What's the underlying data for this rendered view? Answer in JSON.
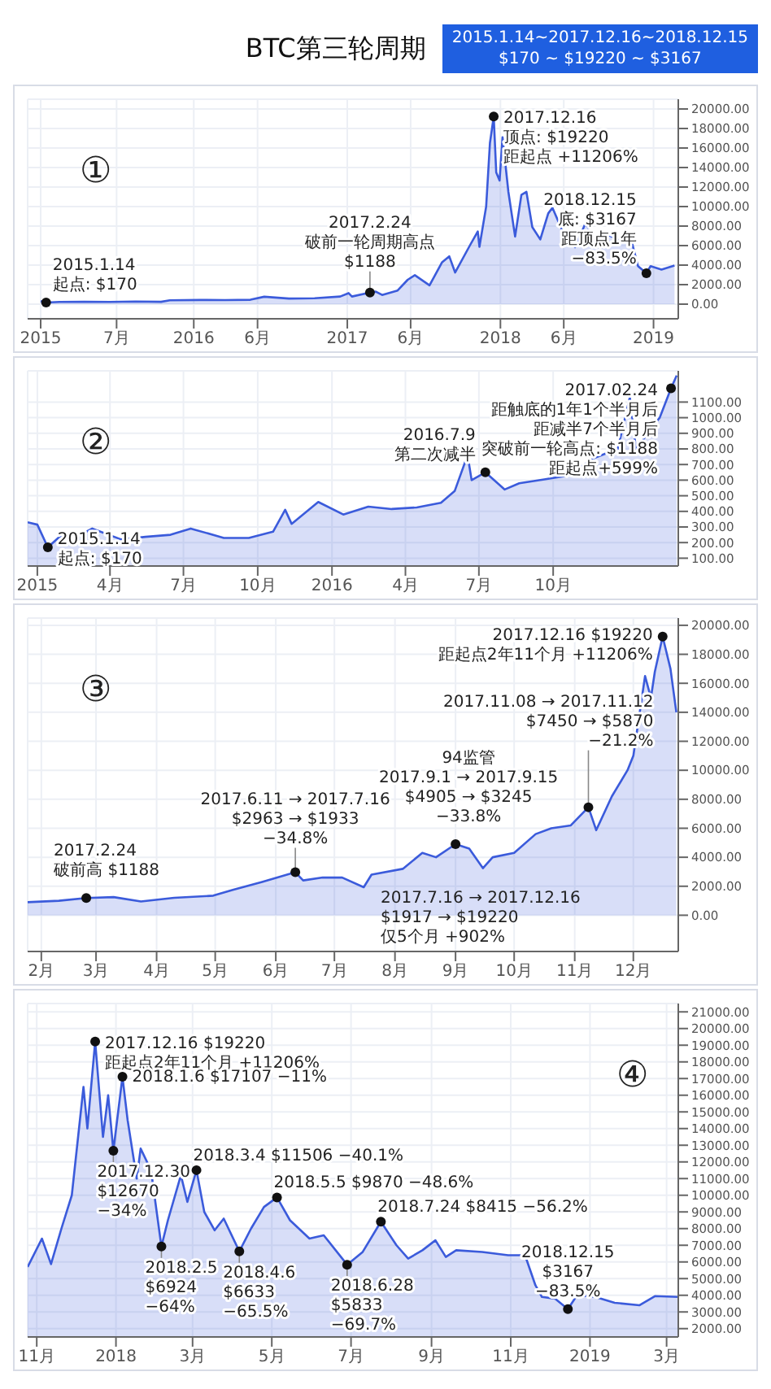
{
  "chart_data": [
    {
      "type": "area",
      "title": "BTC第三轮周期",
      "subtitle": "2015.1.14~2017.12.16~2018.12.15\n$170 ~ $19220 ~ $3167",
      "x": [
        "2015-01-01",
        "2015-01-14",
        "2015-02-15",
        "2015-04-15",
        "2015-06-15",
        "2015-08-15",
        "2015-10-15",
        "2015-11-05",
        "2016-01-15",
        "2016-03-15",
        "2016-05-15",
        "2016-06-17",
        "2016-08-15",
        "2016-10-15",
        "2016-12-15",
        "2017-01-04",
        "2017-01-12",
        "2017-02-24",
        "2017-03-10",
        "2017-03-25",
        "2017-05-01",
        "2017-05-25",
        "2017-06-11",
        "2017-07-16",
        "2017-08-15",
        "2017-09-01",
        "2017-09-15",
        "2017-10-20",
        "2017-11-08",
        "2017-11-12",
        "2017-11-28",
        "2017-12-07",
        "2017-12-16",
        "2017-12-22",
        "2017-12-30",
        "2018-01-06",
        "2018-01-20",
        "2018-02-05",
        "2018-02-20",
        "2018-03-04",
        "2018-03-18",
        "2018-04-06",
        "2018-04-25",
        "2018-05-05",
        "2018-05-30",
        "2018-06-28",
        "2018-07-24",
        "2018-08-14",
        "2018-09-04",
        "2018-10-15",
        "2018-11-10",
        "2018-11-25",
        "2018-12-15",
        "2018-12-25",
        "2019-01-20",
        "2019-02-20"
      ],
      "series": [
        {
          "color": "#3b5bdb",
          "values": [
            320,
            170,
            230,
            240,
            225,
            270,
            240,
            400,
            430,
            415,
            450,
            760,
            570,
            610,
            780,
            1130,
            780,
            1188,
            1280,
            940,
            1400,
            2500,
            2963,
            1933,
            4300,
            4905,
            3245,
            6000,
            7450,
            5870,
            10000,
            16500,
            19220,
            13500,
            12670,
            17107,
            11500,
            6924,
            11200,
            11506,
            7900,
            6633,
            9300,
            9870,
            7400,
            5833,
            8415,
            6200,
            7300,
            6500,
            6400,
            3900,
            3167,
            3900,
            3550,
            3950
          ]
        }
      ],
      "xlim": [
        "2014-12-01",
        "2019-03-01"
      ],
      "xticks": [
        {
          "value": "2015-01-01",
          "label": "2015"
        },
        {
          "value": "2015-07-01",
          "label": "7月"
        },
        {
          "value": "2016-01-01",
          "label": "2016"
        },
        {
          "value": "2016-06-01",
          "label": "6月"
        },
        {
          "value": "2017-01-01",
          "label": "2017"
        },
        {
          "value": "2017-06-01",
          "label": "6月"
        },
        {
          "value": "2018-01-01",
          "label": "2018"
        },
        {
          "value": "2018-06-01",
          "label": "6月"
        },
        {
          "value": "2019-01-01",
          "label": "2019"
        }
      ],
      "ylim": [
        -1500,
        21000
      ],
      "yticks": [
        {
          "value": 0,
          "label": "0.00"
        },
        {
          "value": 2000,
          "label": "2000.00"
        },
        {
          "value": 4000,
          "label": "4000.00"
        },
        {
          "value": 6000,
          "label": "6000.00"
        },
        {
          "value": 8000,
          "label": "8000.00"
        },
        {
          "value": 10000,
          "label": "10000.00"
        },
        {
          "value": 12000,
          "label": "12000.00"
        },
        {
          "value": 14000,
          "label": "14000.00"
        },
        {
          "value": 16000,
          "label": "16000.00"
        },
        {
          "value": 18000,
          "label": "18000.00"
        },
        {
          "value": 20000,
          "label": "20000.00"
        }
      ],
      "grid": true,
      "annotations": [
        "①",
        {
          "text": "2017.12.16\n顶点: $19220\n距起点 +11206%",
          "x": "2017-12-16",
          "y": 19220
        },
        {
          "text": "2018.12.15\n底: $3167\n距顶点1年\n−83.5%",
          "x": "2018-12-15",
          "y": 3167
        },
        {
          "text": "2015.1.14\n起点: $170",
          "x": "2015-01-14",
          "y": 170
        },
        {
          "text": "2017.2.24\n破前一轮周期高点\n$1188",
          "x": "2017-02-24",
          "y": 1188
        }
      ]
    },
    {
      "type": "area",
      "x": [
        "2014-12-20",
        "2015-01-01",
        "2015-01-14",
        "2015-01-28",
        "2015-02-20",
        "2015-03-10",
        "2015-04-15",
        "2015-05-15",
        "2015-06-15",
        "2015-07-10",
        "2015-08-20",
        "2015-09-20",
        "2015-10-20",
        "2015-11-04",
        "2015-11-12",
        "2015-12-15",
        "2016-01-15",
        "2016-02-15",
        "2016-03-15",
        "2016-04-15",
        "2016-05-15",
        "2016-06-01",
        "2016-06-17",
        "2016-06-22",
        "2016-07-09",
        "2016-08-02",
        "2016-08-20",
        "2016-09-20",
        "2016-10-20",
        "2016-11-20",
        "2016-12-20",
        "2017-01-04",
        "2017-01-12",
        "2017-01-25",
        "2017-02-10",
        "2017-02-24",
        "2017-03-03"
      ],
      "series": [
        {
          "color": "#3b5bdb",
          "values": [
            330,
            315,
            170,
            235,
            240,
            290,
            220,
            237,
            250,
            290,
            230,
            230,
            270,
            410,
            320,
            460,
            380,
            430,
            415,
            425,
            455,
            530,
            760,
            600,
            650,
            540,
            580,
            605,
            630,
            740,
            800,
            1130,
            780,
            900,
            1000,
            1188,
            1270
          ]
        }
      ],
      "xlim": [
        "2014-12-20",
        "2017-03-05"
      ],
      "xticks": [
        {
          "value": "2015-01-01",
          "label": "2015"
        },
        {
          "value": "2015-04-01",
          "label": "4月"
        },
        {
          "value": "2015-07-01",
          "label": "7月"
        },
        {
          "value": "2015-10-01",
          "label": "10月"
        },
        {
          "value": "2016-01-01",
          "label": "2016"
        },
        {
          "value": "2016-04-01",
          "label": "4月"
        },
        {
          "value": "2016-07-01",
          "label": "7月"
        },
        {
          "value": "2016-10-01",
          "label": "10月"
        }
      ],
      "ylim": [
        50,
        1300
      ],
      "yticks": [
        {
          "value": 100,
          "label": "100.00"
        },
        {
          "value": 200,
          "label": "200.00"
        },
        {
          "value": 300,
          "label": "300.00"
        },
        {
          "value": 400,
          "label": "400.00"
        },
        {
          "value": 500,
          "label": "500.00"
        },
        {
          "value": 600,
          "label": "600.00"
        },
        {
          "value": 700,
          "label": "700.00"
        },
        {
          "value": 800,
          "label": "800.00"
        },
        {
          "value": 900,
          "label": "900.00"
        },
        {
          "value": 1000,
          "label": "1000.00"
        },
        {
          "value": 1100,
          "label": "1100.00"
        }
      ],
      "grid": true,
      "annotations": [
        "②",
        {
          "text": "2015.1.14\n起点: $170",
          "x": "2015-01-14",
          "y": 170
        },
        {
          "text": "2016.7.9\n第二次减半",
          "x": "2016-07-09",
          "y": 650
        },
        {
          "text": "2017.02.24\n距触底的1年1个半月后距减半7个半月后突破前一轮高点: $1188\n距起点+599%",
          "x": "2017-02-24",
          "y": 1188
        }
      ]
    },
    {
      "type": "area",
      "x": [
        "2017-01-25",
        "2017-02-10",
        "2017-02-24",
        "2017-03-10",
        "2017-03-24",
        "2017-04-10",
        "2017-04-30",
        "2017-05-10",
        "2017-05-25",
        "2017-06-11",
        "2017-06-15",
        "2017-06-25",
        "2017-07-05",
        "2017-07-16",
        "2017-07-20",
        "2017-08-05",
        "2017-08-15",
        "2017-08-22",
        "2017-09-01",
        "2017-09-08",
        "2017-09-15",
        "2017-09-20",
        "2017-10-01",
        "2017-10-12",
        "2017-10-20",
        "2017-10-30",
        "2017-11-08",
        "2017-11-12",
        "2017-11-20",
        "2017-11-28",
        "2017-12-01",
        "2017-12-07",
        "2017-12-10",
        "2017-12-12",
        "2017-12-16",
        "2017-12-20",
        "2017-12-23"
      ],
      "series": [
        {
          "color": "#3b5bdb",
          "values": [
            900,
            1000,
            1188,
            1250,
            950,
            1200,
            1350,
            1750,
            2300,
            2963,
            2400,
            2600,
            2600,
            1933,
            2800,
            3200,
            4300,
            4000,
            4905,
            4600,
            3245,
            4000,
            4300,
            5600,
            6000,
            6200,
            7450,
            5870,
            8200,
            10000,
            11000,
            16500,
            15000,
            16800,
            19220,
            17000,
            14000
          ]
        }
      ],
      "xlim": [
        "2017-01-25",
        "2017-12-24"
      ],
      "xticks": [
        {
          "value": "2017-02-01",
          "label": "2月"
        },
        {
          "value": "2017-03-01",
          "label": "3月"
        },
        {
          "value": "2017-04-01",
          "label": "4月"
        },
        {
          "value": "2017-05-01",
          "label": "5月"
        },
        {
          "value": "2017-06-01",
          "label": "6月"
        },
        {
          "value": "2017-07-01",
          "label": "7月"
        },
        {
          "value": "2017-08-01",
          "label": "8月"
        },
        {
          "value": "2017-09-01",
          "label": "9月"
        },
        {
          "value": "2017-10-01",
          "label": "10月"
        },
        {
          "value": "2017-11-01",
          "label": "11月"
        },
        {
          "value": "2017-12-01",
          "label": "12月"
        }
      ],
      "ylim": [
        -2500,
        20500
      ],
      "yticks": [
        {
          "value": 0,
          "label": "0.00"
        },
        {
          "value": 2000,
          "label": "2000.00"
        },
        {
          "value": 4000,
          "label": "4000.00"
        },
        {
          "value": 6000,
          "label": "6000.00"
        },
        {
          "value": 8000,
          "label": "8000.00"
        },
        {
          "value": 10000,
          "label": "10000.00"
        },
        {
          "value": 12000,
          "label": "12000.00"
        },
        {
          "value": 14000,
          "label": "14000.00"
        },
        {
          "value": 16000,
          "label": "16000.00"
        },
        {
          "value": 18000,
          "label": "18000.00"
        },
        {
          "value": 20000,
          "label": "20000.00"
        }
      ],
      "grid": true,
      "annotations": [
        "③",
        {
          "text": "2017.2.24\n破前高 $1188",
          "x": "2017-02-24",
          "y": 1188
        },
        {
          "text": "2017.6.11 → 2017.7.16\n$2963 → $1933\n−34.8%",
          "x": "2017-06-11",
          "y": 2963
        },
        {
          "text": "94监管\n2017.9.1 → 2017.9.15\n$4905 → $3245\n−33.8%",
          "x": "2017-09-01",
          "y": 4905
        },
        {
          "text": "2017.11.08 → 2017.11.12\n$7450 → $5870\n−21.2%",
          "x": "2017-11-08",
          "y": 7450
        },
        {
          "text": "2017.12.16  $19220\n距起点2年11个月 +11206%",
          "x": "2017-12-16",
          "y": 19220
        },
        "2017.7.16 → 2017.12.16\n$1917 → $19220\n仅5个月 +902%"
      ]
    },
    {
      "type": "area",
      "x": [
        "2017-10-25",
        "2017-11-05",
        "2017-11-12",
        "2017-11-20",
        "2017-11-28",
        "2017-12-07",
        "2017-12-10",
        "2017-12-16",
        "2017-12-22",
        "2017-12-26",
        "2017-12-30",
        "2018-01-06",
        "2018-01-10",
        "2018-01-17",
        "2018-01-20",
        "2018-01-28",
        "2018-02-05",
        "2018-02-10",
        "2018-02-20",
        "2018-02-25",
        "2018-03-04",
        "2018-03-10",
        "2018-03-18",
        "2018-03-25",
        "2018-04-06",
        "2018-04-15",
        "2018-04-25",
        "2018-05-05",
        "2018-05-15",
        "2018-05-30",
        "2018-06-10",
        "2018-06-28",
        "2018-07-10",
        "2018-07-24",
        "2018-08-05",
        "2018-08-14",
        "2018-08-25",
        "2018-09-04",
        "2018-09-12",
        "2018-09-20",
        "2018-10-10",
        "2018-10-30",
        "2018-11-12",
        "2018-11-20",
        "2018-11-25",
        "2018-12-05",
        "2018-12-15",
        "2018-12-22",
        "2019-01-05",
        "2019-01-20",
        "2019-02-08",
        "2019-02-20",
        "2019-03-10"
      ],
      "series": [
        {
          "color": "#3b5bdb",
          "values": [
            5700,
            7400,
            5870,
            8000,
            10000,
            16500,
            14000,
            19220,
            13500,
            16000,
            12670,
            17107,
            14500,
            11000,
            12800,
            11500,
            6924,
            8500,
            11200,
            9600,
            11506,
            9000,
            7900,
            8600,
            6633,
            8000,
            9300,
            9870,
            8500,
            7400,
            7600,
            5833,
            6600,
            8415,
            7000,
            6200,
            6700,
            7300,
            6300,
            6700,
            6600,
            6400,
            6400,
            4600,
            3900,
            3800,
            3167,
            4000,
            3900,
            3550,
            3400,
            3950,
            3900
          ]
        }
      ],
      "xlim": [
        "2017-10-25",
        "2019-03-10"
      ],
      "xticks": [
        {
          "value": "2017-11-01",
          "label": "11月"
        },
        {
          "value": "2018-01-01",
          "label": "2018"
        },
        {
          "value": "2018-03-01",
          "label": "3月"
        },
        {
          "value": "2018-05-01",
          "label": "5月"
        },
        {
          "value": "2018-07-01",
          "label": "7月"
        },
        {
          "value": "2018-09-01",
          "label": "9月"
        },
        {
          "value": "2018-11-01",
          "label": "11月"
        },
        {
          "value": "2019-01-01",
          "label": "2019"
        },
        {
          "value": "2019-03-01",
          "label": "3月"
        }
      ],
      "ylim": [
        1500,
        21500
      ],
      "yticks": [
        {
          "value": 2000,
          "label": "2000.00"
        },
        {
          "value": 3000,
          "label": "3000.00"
        },
        {
          "value": 4000,
          "label": "4000.00"
        },
        {
          "value": 5000,
          "label": "5000.00"
        },
        {
          "value": 6000,
          "label": "6000.00"
        },
        {
          "value": 7000,
          "label": "7000.00"
        },
        {
          "value": 8000,
          "label": "8000.00"
        },
        {
          "value": 9000,
          "label": "9000.00"
        },
        {
          "value": 10000,
          "label": "10000.00"
        },
        {
          "value": 11000,
          "label": "11000.00"
        },
        {
          "value": 12000,
          "label": "12000.00"
        },
        {
          "value": 13000,
          "label": "13000.00"
        },
        {
          "value": 14000,
          "label": "14000.00"
        },
        {
          "value": 15000,
          "label": "15000.00"
        },
        {
          "value": 16000,
          "label": "16000.00"
        },
        {
          "value": 17000,
          "label": "17000.00"
        },
        {
          "value": 18000,
          "label": "18000.00"
        },
        {
          "value": 19000,
          "label": "19000.00"
        },
        {
          "value": 20000,
          "label": "20000.00"
        },
        {
          "value": 21000,
          "label": "21000.00"
        }
      ],
      "grid": true,
      "annotations": [
        "④",
        {
          "text": "2017.12.16  $19220\n距起点2年11个月 +11206%",
          "x": "2017-12-16",
          "y": 19220
        },
        {
          "text": "2018.1.6  $17107 −11%",
          "x": "2018-01-06",
          "y": 17107
        },
        {
          "text": "2017.12.30\n$12670\n−34%",
          "x": "2017-12-30",
          "y": 12670
        },
        {
          "text": "2018.2.5\n$6924\n−64%",
          "x": "2018-02-05",
          "y": 6924
        },
        {
          "text": "2018.3.4  $11506 −40.1%",
          "x": "2018-03-04",
          "y": 11506
        },
        {
          "text": "2018.4.6\n$6633\n−65.5%",
          "x": "2018-04-06",
          "y": 6633
        },
        {
          "text": "2018.5.5  $9870 −48.6%",
          "x": "2018-05-05",
          "y": 9870
        },
        {
          "text": "2018.6.28\n$5833\n−69.7%",
          "x": "2018-06-28",
          "y": 5833
        },
        {
          "text": "2018.7.24  $8415 −56.2%",
          "x": "2018-07-24",
          "y": 8415
        },
        {
          "text": "2018.12.15\n$3167\n−83.5%",
          "x": "2018-12-15",
          "y": 3167
        }
      ]
    }
  ]
}
